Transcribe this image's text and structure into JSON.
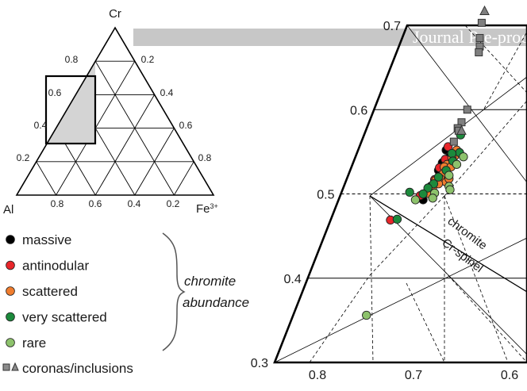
{
  "banner": {
    "text": "Journal Pre-proof"
  },
  "ternary": {
    "apex_top": "Cr",
    "apex_left": "Al",
    "apex_right": "Fe",
    "apex_right_sup": "3+",
    "left_edge_ticks": [
      "0.8",
      "0.6",
      "0.4",
      "0.2"
    ],
    "right_edge_ticks": [
      "0.2",
      "0.4",
      "0.6",
      "0.8"
    ],
    "bottom_ticks": [
      "0.8",
      "0.6",
      "0.4",
      "0.2"
    ]
  },
  "legend": {
    "items": [
      {
        "label": "massive",
        "color": "#000000"
      },
      {
        "label": "antinodular",
        "color": "#e8262a"
      },
      {
        "label": "scattered",
        "color": "#f07d2e"
      },
      {
        "label": "very scattered",
        "color": "#1c8a3c"
      },
      {
        "label": "rare",
        "color": "#8dc26c"
      }
    ],
    "corona_label": "coronas/inclusions",
    "brace_text_1": "chromite",
    "brace_text_2": "abundance"
  },
  "chart_data": {
    "type": "scatter",
    "title": "",
    "left_axis_ticks": [
      "0.7",
      "0.6",
      "0.5",
      "0.4",
      "0.3"
    ],
    "bottom_axis_ticks": [
      "0.8",
      "0.7",
      "0.6"
    ],
    "boundary_label_upper": "chromite",
    "boundary_label_lower": "Cr-spinel",
    "series": [
      {
        "name": "massive",
        "color": "#000000",
        "points": [
          [
            0.666,
            0.552
          ],
          [
            0.662,
            0.545
          ],
          [
            0.67,
            0.537
          ],
          [
            0.674,
            0.528
          ],
          [
            0.668,
            0.53
          ],
          [
            0.676,
            0.514
          ],
          [
            0.682,
            0.509
          ],
          [
            0.686,
            0.502
          ],
          [
            0.69,
            0.493
          ],
          [
            0.671,
            0.52
          ]
        ]
      },
      {
        "name": "antinodular",
        "color": "#e8262a",
        "points": [
          [
            0.664,
            0.556
          ],
          [
            0.667,
            0.541
          ],
          [
            0.673,
            0.531
          ],
          [
            0.678,
            0.517
          ],
          [
            0.681,
            0.507
          ],
          [
            0.684,
            0.503
          ],
          [
            0.693,
            0.498
          ],
          [
            0.724,
            0.469
          ]
        ]
      },
      {
        "name": "scattered",
        "color": "#f07d2e",
        "points": [
          [
            0.655,
            0.552
          ],
          [
            0.657,
            0.545
          ],
          [
            0.66,
            0.543
          ],
          [
            0.665,
            0.535
          ],
          [
            0.668,
            0.532
          ],
          [
            0.661,
            0.532
          ],
          [
            0.669,
            0.524
          ],
          [
            0.672,
            0.518
          ],
          [
            0.677,
            0.516
          ],
          [
            0.666,
            0.514
          ],
          [
            0.68,
            0.508
          ],
          [
            0.683,
            0.5
          ],
          [
            0.663,
            0.518
          ],
          [
            0.674,
            0.512
          ]
        ]
      },
      {
        "name": "very scattered",
        "color": "#1c8a3c",
        "points": [
          [
            0.651,
            0.57
          ],
          [
            0.652,
            0.549
          ],
          [
            0.66,
            0.548
          ],
          [
            0.659,
            0.539
          ],
          [
            0.666,
            0.528
          ],
          [
            0.674,
            0.52
          ],
          [
            0.679,
            0.512
          ],
          [
            0.685,
            0.507
          ],
          [
            0.69,
            0.5
          ],
          [
            0.717,
            0.47
          ],
          [
            0.704,
            0.502
          ]
        ]
      },
      {
        "name": "rare",
        "color": "#8dc26c",
        "points": [
          [
            0.648,
            0.544
          ],
          [
            0.655,
            0.535
          ],
          [
            0.663,
            0.522
          ],
          [
            0.663,
            0.509
          ],
          [
            0.662,
            0.505
          ],
          [
            0.678,
            0.501
          ],
          [
            0.68,
            0.495
          ],
          [
            0.698,
            0.493
          ],
          [
            0.749,
            0.356
          ]
        ]
      },
      {
        "name": "coronas/inclusions (squares)",
        "color": "#7f7f7f",
        "marker": "square",
        "points": [
          [
            0.629,
            0.703
          ],
          [
            0.631,
            0.685
          ],
          [
            0.631,
            0.675
          ],
          [
            0.632,
            0.668
          ],
          [
            0.644,
            0.6
          ],
          [
            0.65,
            0.585
          ],
          [
            0.654,
            0.578
          ],
          [
            0.653,
            0.575
          ],
          [
            0.658,
            0.562
          ]
        ]
      },
      {
        "name": "coronas/inclusions (triangles)",
        "color": "#7f7f7f",
        "marker": "triangle",
        "points": [
          [
            0.626,
            0.717
          ],
          [
            0.65,
            0.575
          ]
        ]
      }
    ]
  }
}
